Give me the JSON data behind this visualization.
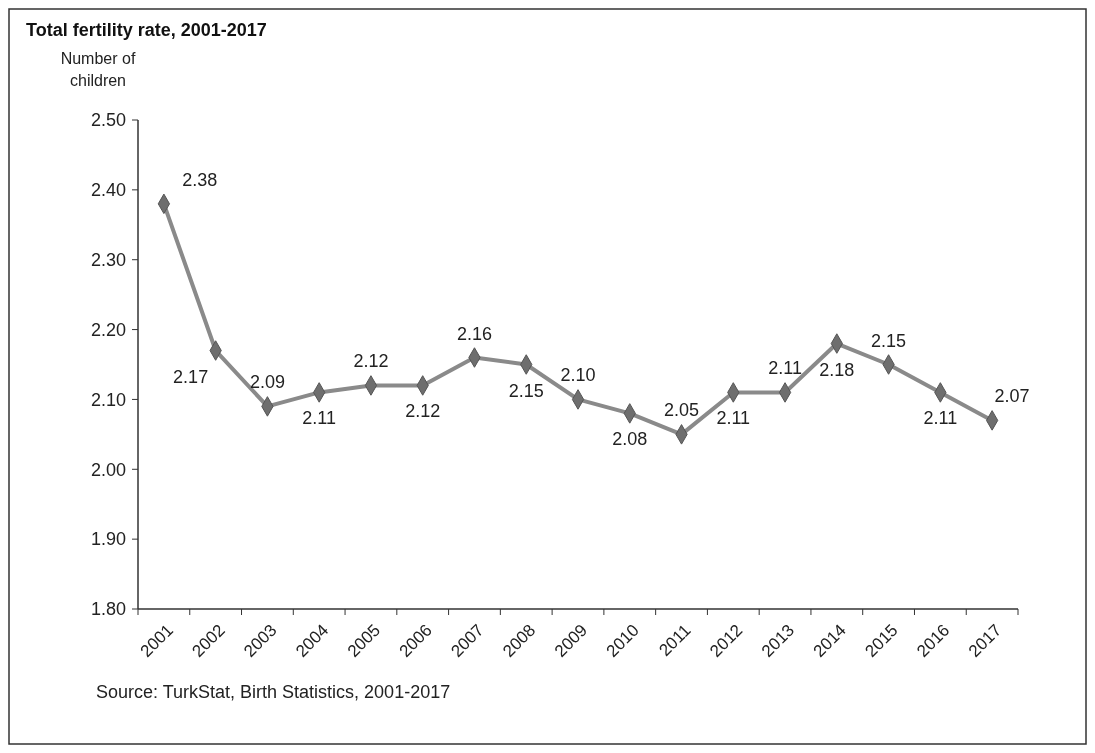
{
  "chart_data": {
    "type": "line",
    "title": "Total fertility rate, 2001-2017",
    "ylabel": "Number of children",
    "categories": [
      "2001",
      "2002",
      "2003",
      "2004",
      "2005",
      "2006",
      "2007",
      "2008",
      "2009",
      "2010",
      "2011",
      "2012",
      "2013",
      "2014",
      "2015",
      "2016",
      "2017"
    ],
    "series": [
      {
        "color": "#8a8a8a",
        "values": [
          2.38,
          2.17,
          2.09,
          2.11,
          2.12,
          2.12,
          2.16,
          2.15,
          2.1,
          2.08,
          2.05,
          2.11,
          2.11,
          2.18,
          2.15,
          2.11,
          2.07
        ],
        "value_labels": [
          "2.38",
          "2.17",
          "2.09",
          "2.11",
          "2.12",
          "2.12",
          "2.16",
          "2.15",
          "2.10",
          "2.08",
          "2.05",
          "2.11",
          "2.11",
          "2.18",
          "2.15",
          "2.11",
          "2.07"
        ]
      }
    ],
    "ylim": [
      1.8,
      2.5
    ],
    "yticks": [
      {
        "value": 1.8,
        "label": "1.80"
      },
      {
        "value": 1.9,
        "label": "1.90"
      },
      {
        "value": 2.0,
        "label": "2.00"
      },
      {
        "value": 2.1,
        "label": "2.10"
      },
      {
        "value": 2.2,
        "label": "2.20"
      },
      {
        "value": 2.3,
        "label": "2.30"
      },
      {
        "value": 2.4,
        "label": "2.40"
      },
      {
        "value": 2.5,
        "label": "2.50"
      }
    ],
    "marker": "diamond",
    "line_style": "solid",
    "grid": false,
    "annotations": [
      "Source: TurkStat, Birth Statistics, 2001-2017"
    ]
  }
}
